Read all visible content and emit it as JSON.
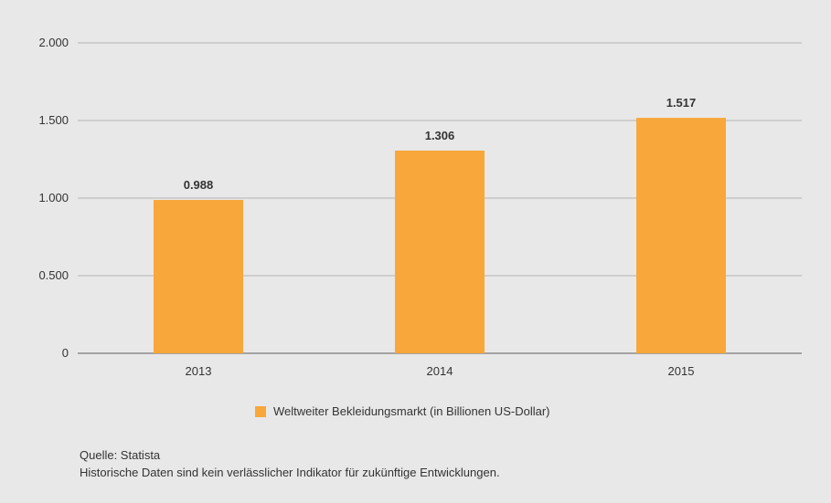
{
  "chart_data": {
    "type": "bar",
    "categories": [
      "2013",
      "2014",
      "2015"
    ],
    "series": [
      {
        "name": "Weltweiter Bekleidungsmarkt (in Billionen US-Dollar)",
        "values": [
          0.988,
          1.306,
          1.517
        ],
        "value_labels": [
          "0.988",
          "1.306",
          "1.517"
        ],
        "color": "#f8a73a"
      }
    ],
    "ylim": [
      0,
      2
    ],
    "yticks": [
      0,
      0.5,
      1,
      1.5,
      2
    ],
    "ytick_labels": [
      "0",
      "0.500",
      "1.000",
      "1.500",
      "2.000"
    ],
    "grid": true,
    "legend_position": "bottom-center",
    "gridline_color": "#b3b3b3",
    "axis_color": "#7a7a7a"
  },
  "legend": {
    "label": "Weltweiter Bekleidungsmarkt (in Billionen US-Dollar)",
    "color": "#f8a73a"
  },
  "footer": {
    "source": "Quelle: Statista",
    "disclaimer": "Historische Daten sind kein verlässlicher Indikator für zukünftige Entwicklungen."
  }
}
